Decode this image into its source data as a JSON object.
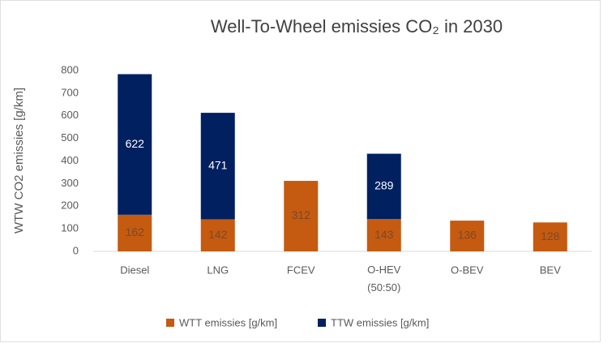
{
  "chart_data": {
    "type": "stacked_bar",
    "title": "Well-To-Wheel emissies CO₂ in 2030",
    "y_label": "WTW CO2 emissies [g/km]",
    "categories": [
      "Diesel",
      "LNG",
      "FCEV",
      "O-HEV (50:50)",
      "O-BEV",
      "BEV"
    ],
    "series": [
      {
        "name": "WTT emissies [g/km]",
        "color": "#c55a11",
        "values": [
          162,
          142,
          312,
          143,
          136,
          128
        ]
      },
      {
        "name": "TTW emissies [g/km]",
        "color": "#002060",
        "values": [
          622,
          471,
          null,
          289,
          null,
          null
        ]
      }
    ],
    "ylim": [
      0,
      800
    ],
    "yticks": [
      0,
      100,
      200,
      300,
      400,
      500,
      600,
      700,
      800
    ],
    "grid": false,
    "legend": "bottom"
  }
}
